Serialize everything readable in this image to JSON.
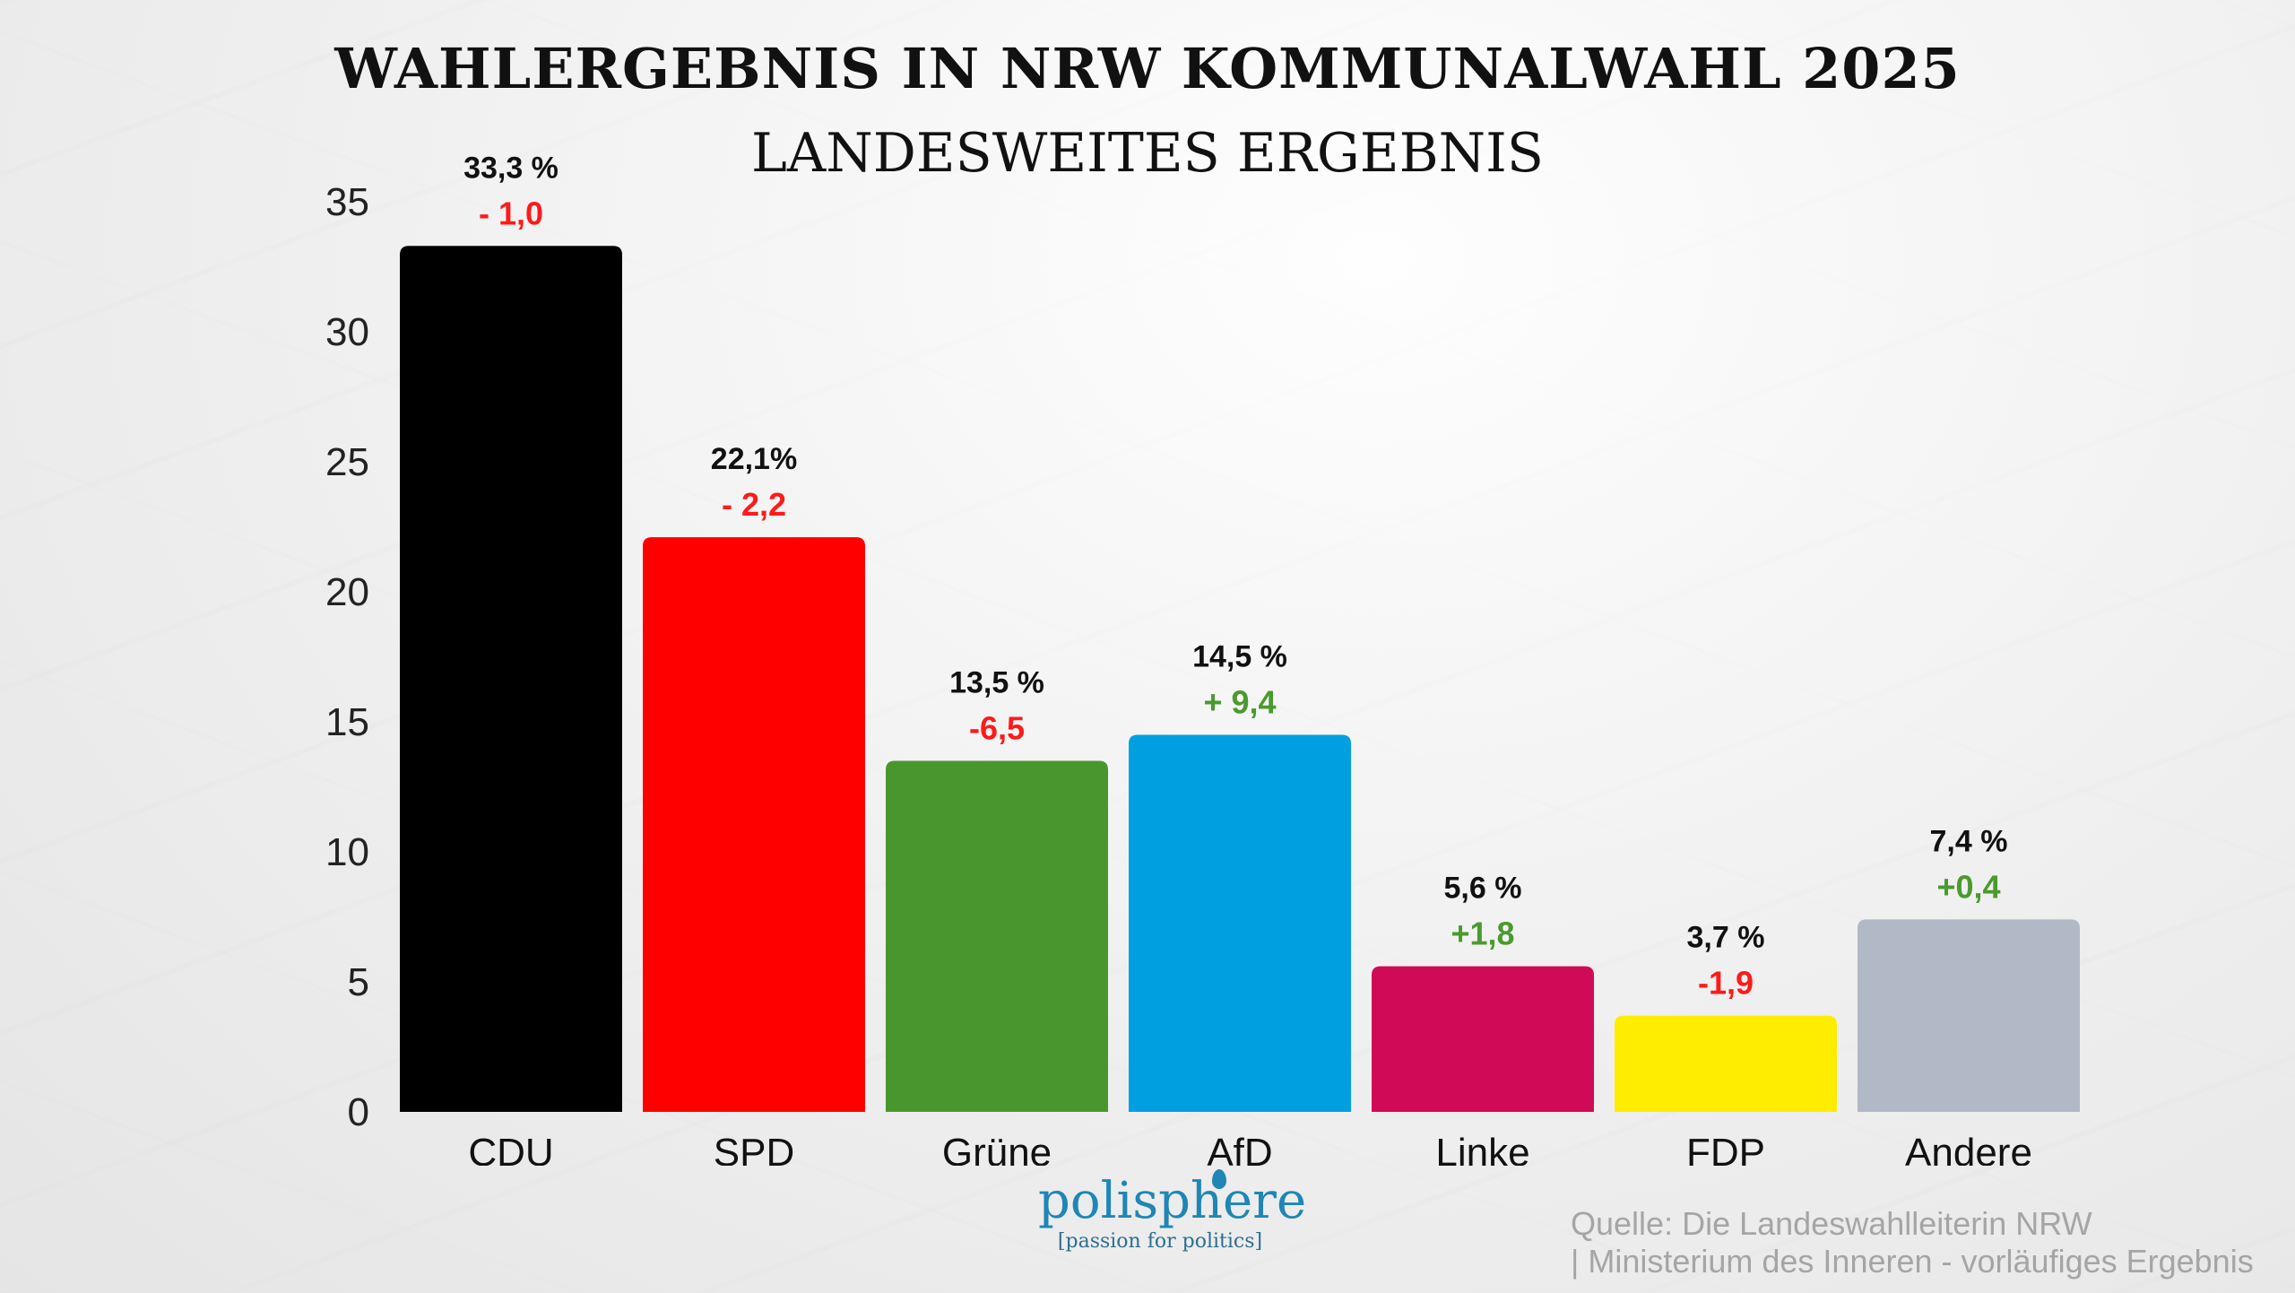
{
  "chart_data": {
    "type": "bar",
    "title": "WAHLERGEBNIS IN NRW KOMMUNALWAHL 2025",
    "subtitle": "LANDESWEITES ERGEBNIS",
    "categories": [
      "CDU",
      "SPD",
      "Grüne",
      "AfD",
      "Linke",
      "FDP",
      "Andere"
    ],
    "values": [
      33.3,
      22.1,
      13.5,
      14.5,
      5.6,
      3.7,
      7.4
    ],
    "value_labels": [
      "33,3 %",
      "22,1%",
      "13,5 %",
      "14,5 %",
      "5,6 %",
      "3,7 %",
      "7,4 %"
    ],
    "change_labels": [
      "- 1,0",
      "- 2,2",
      "-6,5",
      "+ 9,4",
      "+1,8",
      "-1,9",
      "+0,4"
    ],
    "change_colors": [
      "#ff1a1a",
      "#ff1a1a",
      "#ff1a1a",
      "#4a9a2e",
      "#4a9a2e",
      "#ff1a1a",
      "#4a9a2e"
    ],
    "bar_colors": [
      "#000000",
      "#ff0000",
      "#4a962e",
      "#009fe0",
      "#d10a57",
      "#ffed00",
      "#b1b8c6"
    ],
    "yticks": [
      "0",
      "5",
      "10",
      "15",
      "20",
      "25",
      "30",
      "35"
    ],
    "ylim": [
      0,
      35
    ],
    "grid": false,
    "legend": "none"
  },
  "branding": {
    "logo_name": "polisphere",
    "logo_tagline": "[passion for politics]",
    "logo_color": "#1f86b5"
  },
  "source": {
    "line1": "Quelle: Die Landeswahlleiterin NRW",
    "line2": "| Ministerium des Inneren - vorläufiges Ergebnis"
  }
}
